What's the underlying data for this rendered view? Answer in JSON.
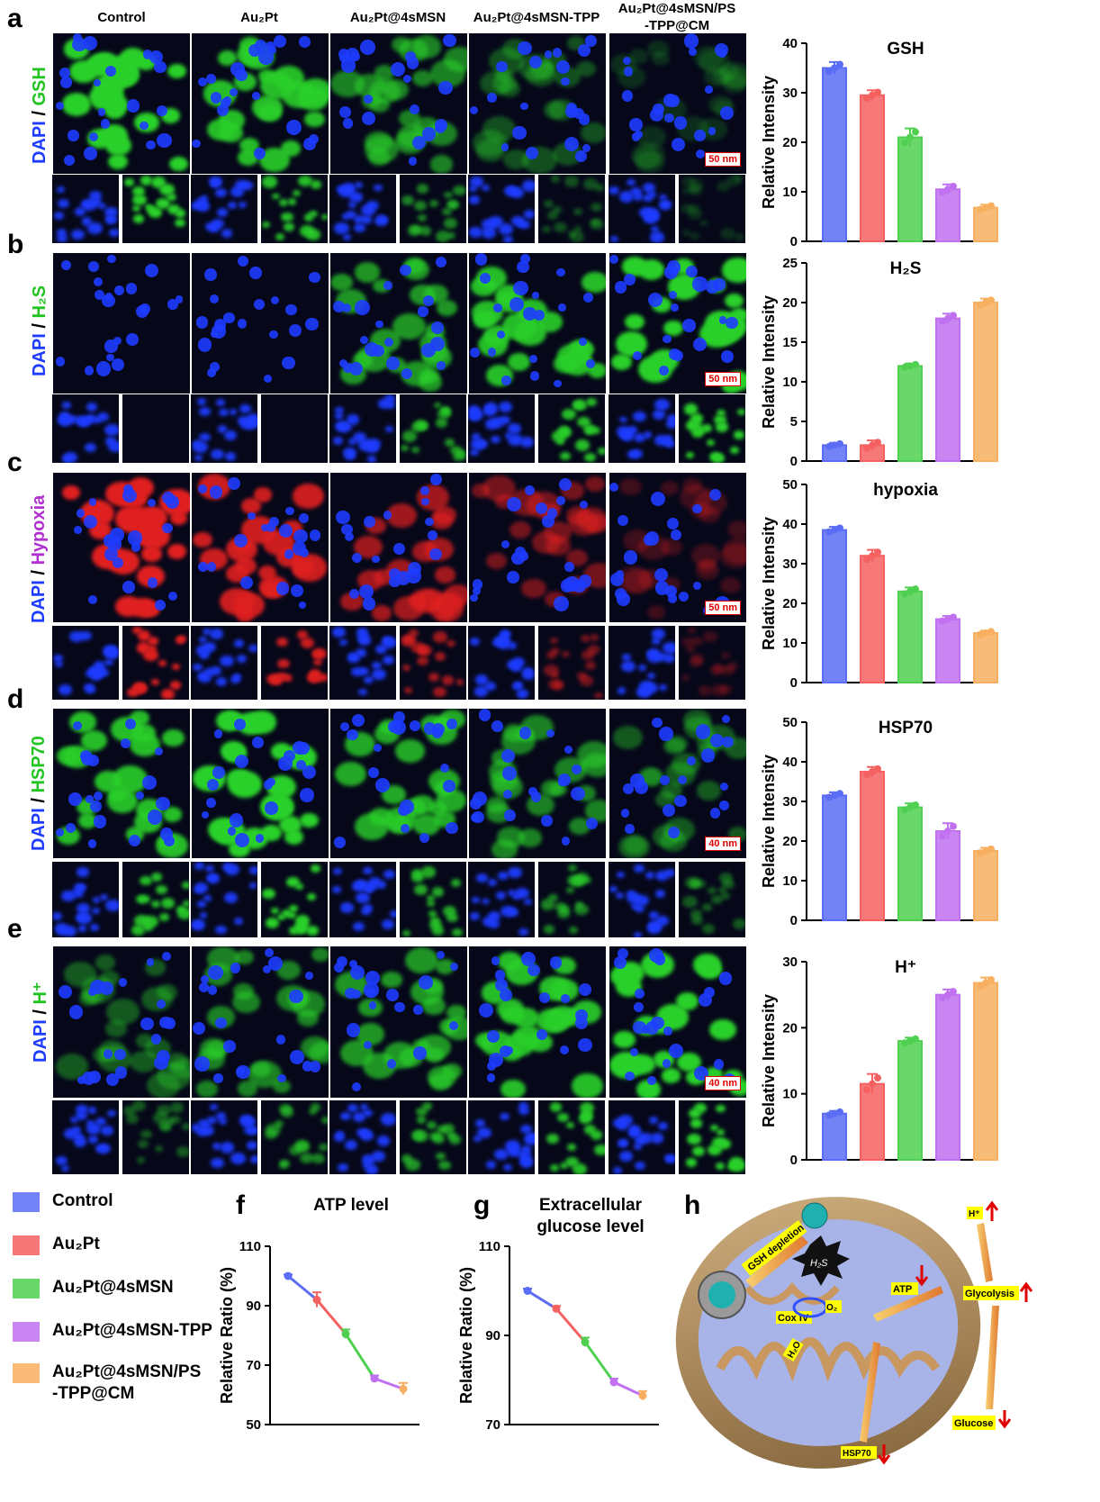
{
  "panels": {
    "a": {
      "letter": "a",
      "stain_prefix": "DAPI",
      "stain_sep": " / ",
      "stain": "GSH",
      "stain_color": "#22c422",
      "scale": "50 nm"
    },
    "b": {
      "letter": "b",
      "stain_prefix": "DAPI",
      "stain_sep": " / ",
      "stain": "H₂S",
      "stain_color": "#22c422",
      "scale": "50 nm"
    },
    "c": {
      "letter": "c",
      "stain_prefix": "DAPI",
      "stain_sep": " / ",
      "stain": "Hypoxia",
      "stain_color": "#b030d0",
      "scale": "50 nm"
    },
    "d": {
      "letter": "d",
      "stain_prefix": "DAPI",
      "stain_sep": " / ",
      "stain": "HSP70",
      "stain_color": "#22c422",
      "scale": "40 nm"
    },
    "e": {
      "letter": "e",
      "stain_prefix": "DAPI",
      "stain_sep": " / ",
      "stain": "H⁺",
      "stain_color": "#22c422",
      "scale": "40 nm"
    }
  },
  "columns": [
    "Control",
    "Au₂Pt",
    "Au₂Pt@4sMSN",
    "Au₂Pt@4sMSN-TPP",
    "Au₂Pt@4sMSN/PS\n-TPP@CM"
  ],
  "colors": {
    "control": "#5b6df5",
    "au2pt": "#f56060",
    "msn": "#50d050",
    "tpp": "#c070f0",
    "cm": "#f8b060",
    "dapi": "#1e3cff",
    "green": "#2ad02a",
    "red": "#e02020"
  },
  "chart_data": [
    {
      "type": "bar",
      "title": "GSH",
      "ylabel": "Relative Intensity",
      "ylim": [
        0,
        40
      ],
      "yticks": [
        0,
        10,
        20,
        30,
        40
      ],
      "categories": [
        "Control",
        "Au₂Pt",
        "Au₂Pt@4sMSN",
        "Au₂Pt@4sMSN-TPP",
        "Au₂Pt@4sMSN/PS-TPP@CM"
      ],
      "values": [
        35,
        29.5,
        21,
        10.5,
        6.8
      ],
      "errors": [
        1.2,
        1,
        1.8,
        1,
        0.6
      ]
    },
    {
      "type": "bar",
      "title": "H₂S",
      "ylabel": "Relative Intensity",
      "ylim": [
        0,
        25
      ],
      "yticks": [
        0,
        5,
        10,
        15,
        20,
        25
      ],
      "categories": [
        "Control",
        "Au₂Pt",
        "Au₂Pt@4sMSN",
        "Au₂Pt@4sMSN-TPP",
        "Au₂Pt@4sMSN/PS-TPP@CM"
      ],
      "values": [
        2,
        2,
        12,
        18,
        20
      ],
      "errors": [
        0.3,
        0.6,
        0.3,
        0.6,
        0.5
      ]
    },
    {
      "type": "bar",
      "title": "hypoxia",
      "ylabel": "Relative Intensity",
      "ylim": [
        0,
        50
      ],
      "yticks": [
        0,
        10,
        20,
        30,
        40,
        50
      ],
      "categories": [
        "Control",
        "Au₂Pt",
        "Au₂Pt@4sMSN",
        "Au₂Pt@4sMSN-TPP",
        "Au₂Pt@4sMSN/PS-TPP@CM"
      ],
      "values": [
        38.5,
        32,
        23,
        16,
        12.5
      ],
      "errors": [
        0.8,
        1.5,
        1,
        0.8,
        0.6
      ]
    },
    {
      "type": "bar",
      "title": "HSP70",
      "ylabel": "Relative Intensity",
      "ylim": [
        0,
        50
      ],
      "yticks": [
        0,
        10,
        20,
        30,
        40,
        50
      ],
      "categories": [
        "Control",
        "Au₂Pt",
        "Au₂Pt@4sMSN",
        "Au₂Pt@4sMSN-TPP",
        "Au₂Pt@4sMSN/PS-TPP@CM"
      ],
      "values": [
        31.5,
        37.5,
        28.5,
        22.5,
        17.5
      ],
      "errors": [
        0.8,
        1.2,
        1,
        2,
        0.8
      ]
    },
    {
      "type": "bar",
      "title": "H⁺",
      "ylabel": "Relative Intensity",
      "ylim": [
        0,
        30
      ],
      "yticks": [
        0,
        10,
        20,
        30
      ],
      "categories": [
        "Control",
        "Au₂Pt",
        "Au₂Pt@4sMSN",
        "Au₂Pt@4sMSN-TPP",
        "Au₂Pt@4sMSN/PS-TPP@CM"
      ],
      "values": [
        7,
        11.5,
        18,
        25,
        26.8
      ],
      "errors": [
        0.4,
        1.5,
        0.5,
        0.8,
        0.8
      ]
    },
    {
      "type": "line",
      "title": "ATP level",
      "ylabel": "Relative  Ratio (%)",
      "ylim": [
        50,
        110
      ],
      "yticks": [
        50,
        70,
        90,
        110
      ],
      "x": [
        1,
        2,
        3,
        4,
        5
      ],
      "values": [
        100,
        92,
        80.5,
        65.5,
        62
      ],
      "errors": [
        0.5,
        2.5,
        1.5,
        1,
        2
      ]
    },
    {
      "type": "line",
      "title": "Extracellular glucose level",
      "ylabel": "Relative  Ratio (%)",
      "ylim": [
        70,
        110
      ],
      "yticks": [
        70,
        90,
        110
      ],
      "x": [
        1,
        2,
        3,
        4,
        5
      ],
      "values": [
        100,
        96,
        88.5,
        79.5,
        76.5
      ],
      "errors": [
        0.5,
        0.6,
        1,
        0.8,
        1
      ]
    }
  ],
  "legend": [
    {
      "label": "Control",
      "color": "#5b6df5",
      "border": "#5b6df5"
    },
    {
      "label": "Au₂Pt",
      "color": "#f56060",
      "border": "#f56060"
    },
    {
      "label": "Au₂Pt@4sMSN",
      "color": "#50d050",
      "border": "#50d050"
    },
    {
      "label": "Au₂Pt@4sMSN-TPP",
      "color": "#c070f0",
      "border": "#c070f0"
    },
    {
      "label": "Au₂Pt@4sMSN/PS\n-TPP@CM",
      "color": "#f8b060",
      "border": "#f8b060"
    }
  ],
  "line_titles": {
    "f": "ATP level",
    "g1": "Extracellular",
    "g2": "glucose level"
  },
  "letters": {
    "f": "f",
    "g": "g",
    "h": "h"
  },
  "scheme": {
    "gsh": "GSH depletion",
    "h2s": "H₂S",
    "coxiv": "Cox IV",
    "o2": "O₂",
    "h2o": "H₂O",
    "atp": "ATP",
    "glycolysis": "Glycolysis",
    "hplus": "H⁺",
    "glucose": "Glucose",
    "hsp70": "HSP70"
  }
}
